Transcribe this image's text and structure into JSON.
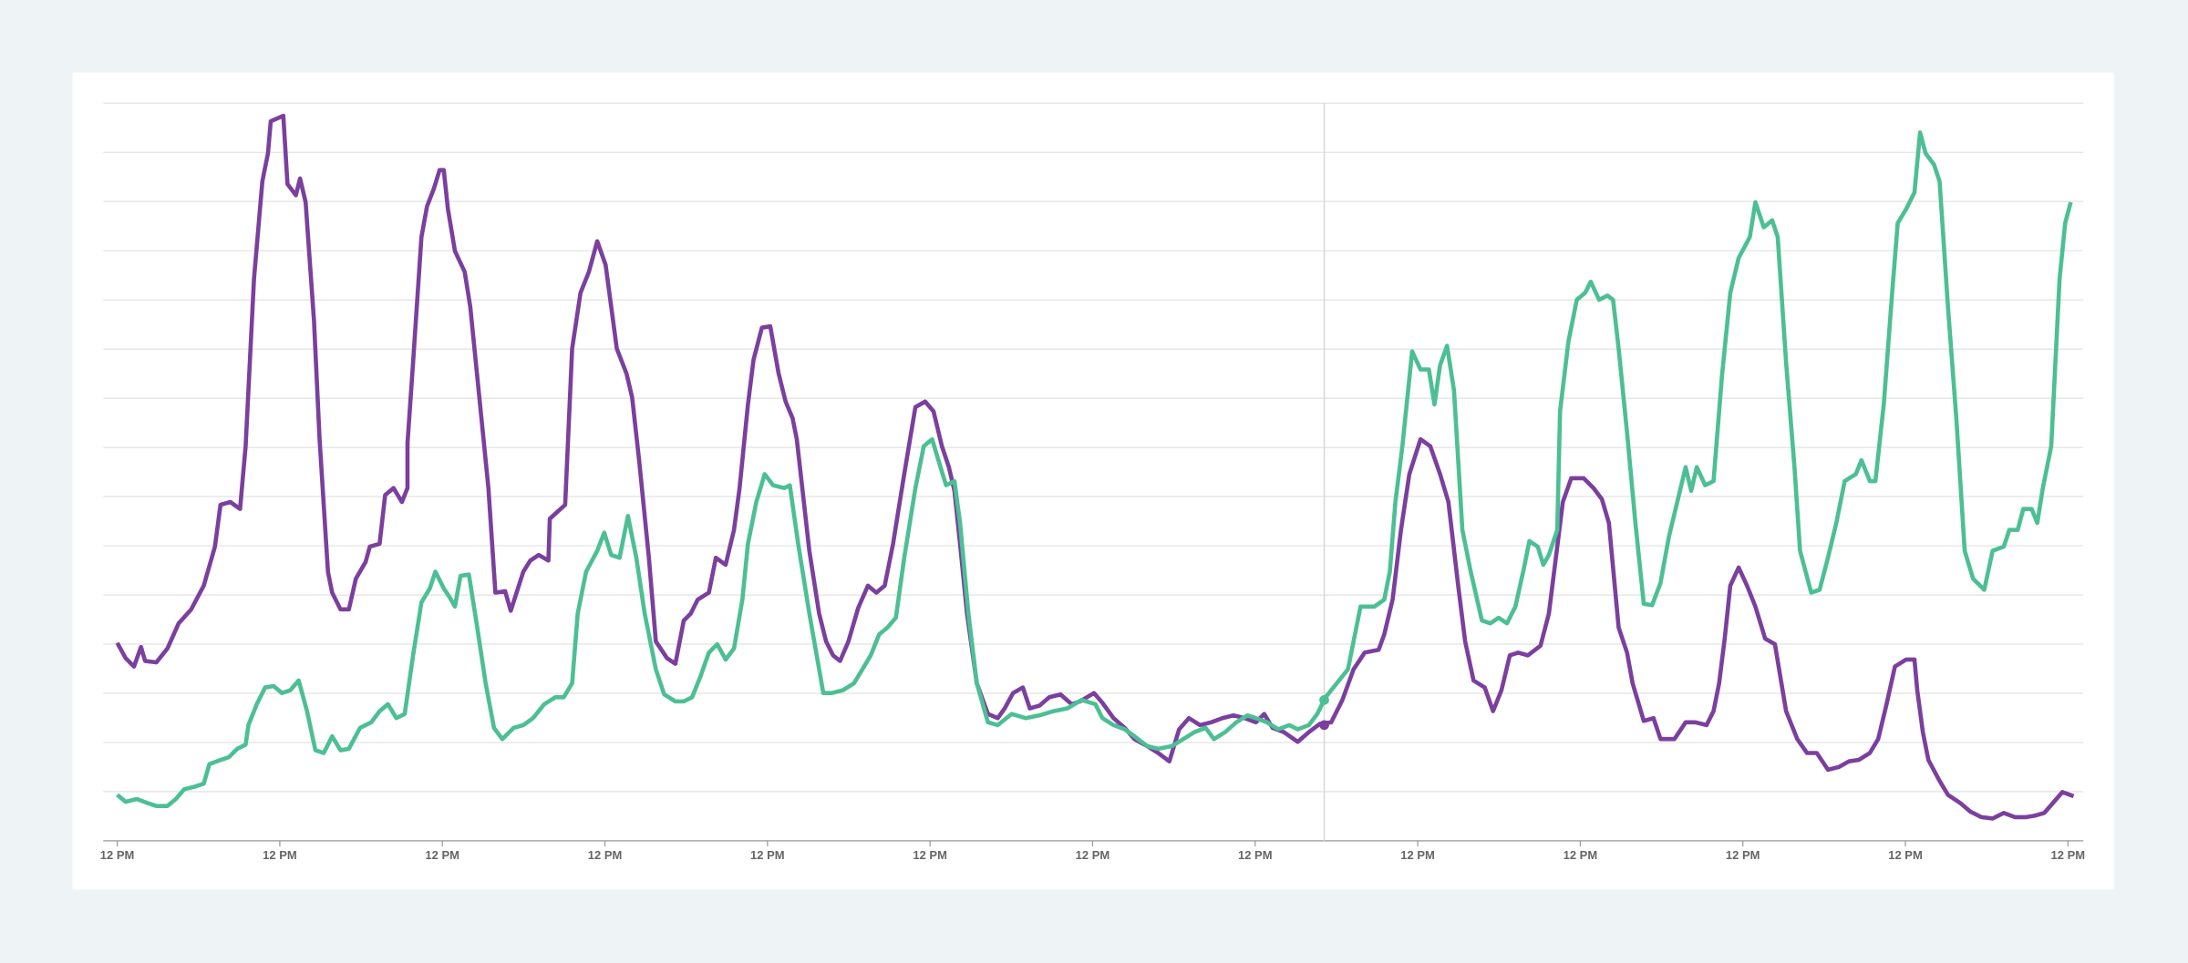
{
  "chart_data": {
    "type": "line",
    "grid": true,
    "xlim": [
      -10,
      1409
    ],
    "ylim": [
      0,
      529
    ],
    "xticks": [
      {
        "value": 0,
        "label": "12 PM"
      },
      {
        "value": 116.5,
        "label": "12 PM"
      },
      {
        "value": 233,
        "label": "12 PM"
      },
      {
        "value": 349.5,
        "label": "12 PM"
      },
      {
        "value": 466,
        "label": "12 PM"
      },
      {
        "value": 582.5,
        "label": "12 PM"
      },
      {
        "value": 699,
        "label": "12 PM"
      },
      {
        "value": 815.5,
        "label": "12 PM"
      },
      {
        "value": 932,
        "label": "12 PM"
      },
      {
        "value": 1048.5,
        "label": "12 PM"
      },
      {
        "value": 1165,
        "label": "12 PM"
      },
      {
        "value": 1281.5,
        "label": "12 PM"
      },
      {
        "value": 1398,
        "label": "12 PM"
      }
    ],
    "yticks": [
      0,
      35.3,
      70.5,
      105.8,
      141.1,
      176.3,
      211.6,
      246.9,
      282.1,
      317.4,
      352.7,
      387.9,
      423.2,
      458.5,
      493.7,
      529
    ],
    "series": [
      {
        "color": "#7b3f9e",
        "x": [
          0,
          6,
          12,
          17,
          20,
          28,
          36,
          44,
          53,
          62,
          70,
          74,
          81,
          88,
          92,
          98,
          104,
          108,
          110,
          119,
          122,
          128,
          131,
          135,
          141,
          145,
          151,
          154,
          160,
          166,
          171,
          178,
          181,
          188,
          192,
          198,
          204,
          208,
          208,
          212,
          218,
          222,
          227,
          231,
          234,
          237,
          242,
          249,
          253,
          261,
          266,
          271,
          278,
          282,
          291,
          296,
          302,
          309,
          310,
          321,
          326,
          332,
          338,
          344,
          350,
          354,
          358,
          365,
          369,
          374,
          381,
          386,
          394,
          400,
          406,
          411,
          416,
          424,
          429,
          436,
          442,
          446,
          452,
          456,
          462,
          468,
          474,
          479,
          484,
          487,
          496,
          503,
          508,
          513,
          518,
          524,
          531,
          538,
          544,
          550,
          556,
          564,
          572,
          579,
          585,
          591,
          596,
          600,
          604,
          609,
          616,
          624,
          631,
          636,
          642,
          649,
          654,
          661,
          668,
          676,
          684,
          690,
          700,
          706,
          714,
          722,
          729,
          738,
          746,
          754,
          761,
          768,
          776,
          784,
          792,
          800,
          808,
          816,
          822,
          828,
          836,
          846,
          854,
          862,
          870,
          878,
          886,
          894,
          904,
          908,
          914,
          920,
          926,
          934,
          941,
          948,
          954,
          961,
          966,
          972,
          980,
          986,
          992,
          998,
          1004,
          1011,
          1020,
          1026,
          1031,
          1036,
          1042,
          1051,
          1058,
          1064,
          1069,
          1076,
          1082,
          1086,
          1094,
          1101,
          1106,
          1116,
          1124,
          1131,
          1139,
          1144,
          1148,
          1152,
          1156,
          1162,
          1168,
          1174,
          1181,
          1188,
          1196,
          1204,
          1211,
          1218,
          1226,
          1234,
          1241,
          1248,
          1256,
          1262,
          1268,
          1274,
          1282,
          1288,
          1290,
          1294,
          1298,
          1306,
          1312,
          1321,
          1328,
          1336,
          1344,
          1352,
          1360,
          1368,
          1374,
          1381,
          1388,
          1394,
          1402
        ],
        "values": [
          142,
          131,
          125,
          139,
          129,
          128,
          138,
          156,
          166,
          183,
          211,
          241,
          243,
          238,
          283,
          403,
          473,
          493,
          516,
          520,
          471,
          463,
          475,
          458,
          373,
          288,
          193,
          178,
          166,
          166,
          188,
          200,
          211,
          213,
          248,
          253,
          243,
          253,
          285,
          343,
          433,
          455,
          468,
          481,
          481,
          453,
          423,
          408,
          383,
          303,
          253,
          178,
          179,
          165,
          193,
          201,
          205,
          201,
          231,
          241,
          353,
          393,
          408,
          430,
          413,
          383,
          353,
          335,
          318,
          273,
          203,
          143,
          131,
          127,
          158,
          163,
          173,
          178,
          203,
          198,
          223,
          253,
          313,
          345,
          368,
          369,
          335,
          315,
          303,
          288,
          208,
          163,
          143,
          133,
          129,
          143,
          167,
          183,
          178,
          183,
          213,
          263,
          311,
          315,
          308,
          283,
          268,
          251,
          213,
          163,
          113,
          91,
          88,
          95,
          106,
          110,
          95,
          97,
          103,
          105,
          98,
          100,
          106,
          99,
          88,
          81,
          73,
          68,
          63,
          57,
          80,
          88,
          83,
          85,
          88,
          90,
          88,
          85,
          91,
          81,
          78,
          71,
          78,
          84,
          85,
          101,
          123,
          135,
          137,
          148,
          173,
          223,
          263,
          288,
          283,
          263,
          243,
          183,
          143,
          115,
          110,
          93,
          108,
          133,
          135,
          133,
          140,
          163,
          203,
          243,
          260,
          260,
          253,
          245,
          228,
          153,
          135,
          113,
          86,
          88,
          73,
          73,
          85,
          85,
          83,
          93,
          113,
          145,
          183,
          196,
          183,
          168,
          145,
          141,
          93,
          73,
          63,
          63,
          51,
          53,
          57,
          58,
          63,
          73,
          98,
          125,
          130,
          130,
          108,
          78,
          58,
          43,
          33,
          27,
          21,
          17,
          16,
          20,
          17,
          17,
          18,
          20,
          28,
          35,
          32
        ]
      },
      {
        "color": "#4cbf94",
        "x": [
          0,
          6,
          14,
          22,
          28,
          36,
          42,
          48,
          56,
          62,
          66,
          74,
          80,
          86,
          92,
          94,
          100,
          106,
          112,
          118,
          124,
          130,
          136,
          142,
          148,
          154,
          160,
          166,
          174,
          182,
          188,
          194,
          200,
          206,
          212,
          218,
          224,
          228,
          234,
          238,
          242,
          246,
          252,
          258,
          264,
          270,
          276,
          284,
          291,
          298,
          306,
          314,
          320,
          326,
          330,
          336,
          344,
          349,
          354,
          360,
          366,
          372,
          378,
          386,
          392,
          400,
          406,
          412,
          418,
          424,
          430,
          436,
          442,
          448,
          452,
          458,
          464,
          470,
          478,
          482,
          488,
          496,
          506,
          512,
          520,
          528,
          534,
          540,
          546,
          552,
          558,
          564,
          572,
          578,
          584,
          590,
          594,
          600,
          604,
          610,
          616,
          624,
          631,
          641,
          651,
          661,
          671,
          681,
          691,
          701,
          706,
          714,
          722,
          729,
          738,
          746,
          756,
          764,
          772,
          780,
          786,
          794,
          802,
          810,
          816,
          824,
          832,
          840,
          846,
          854,
          860,
          866,
          874,
          882,
          886,
          891,
          901,
          908,
          912,
          916,
          921,
          928,
          934,
          940,
          944,
          948,
          953,
          958,
          964,
          970,
          978,
          984,
          990,
          996,
          1002,
          1008,
          1012,
          1018,
          1022,
          1026,
          1032,
          1034,
          1040,
          1046,
          1052,
          1056,
          1062,
          1068,
          1072,
          1076,
          1082,
          1088,
          1094,
          1100,
          1106,
          1112,
          1118,
          1124,
          1128,
          1132,
          1138,
          1144,
          1150,
          1156,
          1162,
          1170,
          1174,
          1180,
          1186,
          1190,
          1196,
          1202,
          1206,
          1214,
          1220,
          1226,
          1232,
          1238,
          1246,
          1250,
          1256,
          1260,
          1266,
          1272,
          1276,
          1282,
          1288,
          1292,
          1296,
          1302,
          1306,
          1312,
          1318,
          1324,
          1330,
          1338,
          1344,
          1352,
          1356,
          1362,
          1366,
          1372,
          1376,
          1380,
          1386,
          1392,
          1396,
          1400
        ],
        "values": [
          33,
          28,
          30,
          27,
          25,
          25,
          30,
          37,
          39,
          41,
          55,
          58,
          60,
          66,
          69,
          83,
          98,
          110,
          111,
          106,
          108,
          115,
          93,
          65,
          63,
          75,
          65,
          66,
          81,
          85,
          93,
          98,
          88,
          91,
          133,
          171,
          181,
          193,
          181,
          175,
          168,
          190,
          191,
          153,
          113,
          81,
          73,
          81,
          83,
          88,
          98,
          103,
          103,
          113,
          163,
          193,
          208,
          221,
          205,
          203,
          233,
          203,
          163,
          123,
          105,
          100,
          100,
          103,
          118,
          135,
          141,
          130,
          138,
          173,
          213,
          243,
          263,
          255,
          253,
          255,
          213,
          163,
          106,
          106,
          108,
          113,
          123,
          133,
          148,
          153,
          160,
          203,
          253,
          283,
          288,
          268,
          255,
          258,
          228,
          163,
          113,
          85,
          83,
          91,
          88,
          90,
          93,
          95,
          101,
          98,
          88,
          83,
          80,
          75,
          68,
          66,
          68,
          73,
          78,
          81,
          73,
          78,
          85,
          90,
          88,
          85,
          80,
          83,
          80,
          83,
          91,
          103,
          113,
          123,
          143,
          168,
          168,
          173,
          193,
          243,
          283,
          351,
          338,
          338,
          313,
          341,
          355,
          323,
          223,
          193,
          158,
          156,
          160,
          156,
          168,
          195,
          215,
          211,
          198,
          205,
          223,
          308,
          358,
          388,
          393,
          401,
          388,
          391,
          388,
          353,
          293,
          228,
          170,
          169,
          185,
          218,
          243,
          268,
          251,
          268,
          255,
          258,
          333,
          393,
          418,
          433,
          458,
          440,
          445,
          433,
          343,
          268,
          208,
          178,
          180,
          203,
          228,
          258,
          263,
          273,
          258,
          258,
          313,
          393,
          443,
          453,
          465,
          508,
          493,
          485,
          473,
          383,
          303,
          208,
          188,
          180,
          208,
          211,
          223,
          223,
          238,
          238,
          228,
          253,
          283,
          403,
          443,
          458
        ]
      }
    ]
  }
}
